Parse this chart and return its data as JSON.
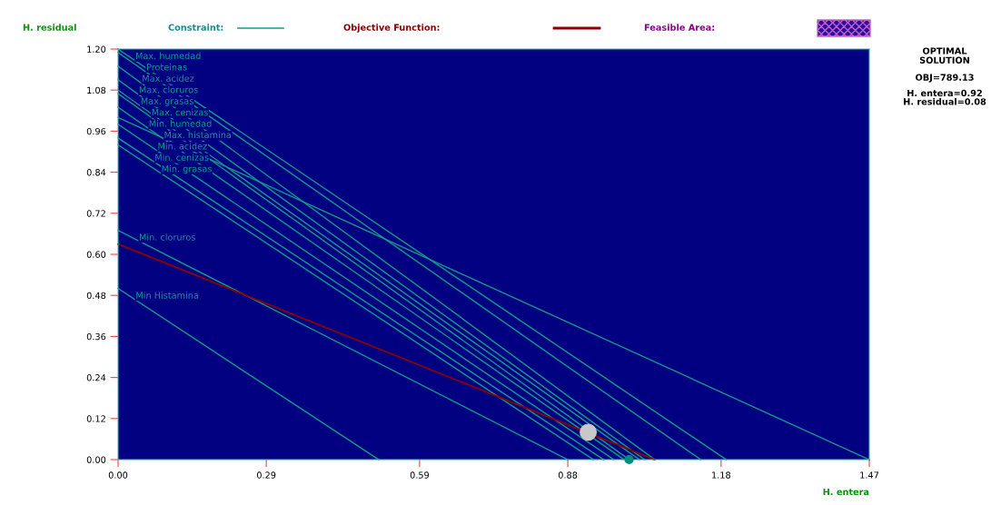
{
  "chart_data": {
    "type": "line",
    "xlabel": "H. entera",
    "ylabel": "H. residual",
    "xlim": [
      0,
      1.47
    ],
    "ylim": [
      0,
      1.2
    ],
    "xticks": [
      {
        "value": 0,
        "label": "0.00"
      },
      {
        "value": 0.29,
        "label": "0.29"
      },
      {
        "value": 0.59,
        "label": "0.59"
      },
      {
        "value": 0.88,
        "label": "0.88"
      },
      {
        "value": 1.18,
        "label": "1.18"
      },
      {
        "value": 1.47,
        "label": "1.47"
      }
    ],
    "yticks": [
      {
        "value": 0,
        "label": "0.00"
      },
      {
        "value": 0.12,
        "label": "0.12"
      },
      {
        "value": 0.24,
        "label": "0.24"
      },
      {
        "value": 0.36,
        "label": "0.36"
      },
      {
        "value": 0.48,
        "label": "0.48"
      },
      {
        "value": 0.6,
        "label": "0.60"
      },
      {
        "value": 0.72,
        "label": "0.72"
      },
      {
        "value": 0.84,
        "label": "0.84"
      },
      {
        "value": 0.96,
        "label": "0.96"
      },
      {
        "value": 1.08,
        "label": "1.08"
      },
      {
        "value": 1.2,
        "label": "1.20"
      }
    ],
    "legend": "top",
    "grid": false,
    "series": [
      {
        "name": "Max. humedad",
        "color": "#12998c",
        "x": [
          0,
          1.19
        ],
        "values": [
          1.2,
          0
        ]
      },
      {
        "name": "Proteinas",
        "color": "#12998c",
        "x": [
          0,
          1.14
        ],
        "values": [
          1.19,
          0
        ]
      },
      {
        "name": "Max. acidez",
        "color": "#12998c",
        "x": [
          0,
          1.05
        ],
        "values": [
          1.15,
          0
        ]
      },
      {
        "name": "Max. cloruros",
        "color": "#12998c",
        "x": [
          0,
          1.03
        ],
        "values": [
          1.11,
          0
        ]
      },
      {
        "name": "Max. grasas",
        "color": "#12998c",
        "x": [
          0,
          1.02
        ],
        "values": [
          1.08,
          0
        ]
      },
      {
        "name": "Max. cenizas",
        "color": "#12998c",
        "x": [
          0,
          1.0
        ],
        "values": [
          1.07,
          0
        ]
      },
      {
        "name": "Min. humedad",
        "color": "#12998c",
        "x": [
          0,
          0.99
        ],
        "values": [
          1.03,
          0
        ]
      },
      {
        "name": "Max. histamina",
        "color": "#12998c",
        "x": [
          0,
          1.47
        ],
        "values": [
          1.0,
          0
        ]
      },
      {
        "name": "Min. acidez",
        "color": "#12998c",
        "x": [
          0,
          0.97
        ],
        "values": [
          0.98,
          0
        ]
      },
      {
        "name": "Min. cenizas",
        "color": "#12998c",
        "x": [
          0,
          0.95
        ],
        "values": [
          0.94,
          0
        ]
      },
      {
        "name": "Min. grasas",
        "color": "#12998c",
        "x": [
          0,
          0.93
        ],
        "values": [
          0.92,
          0
        ]
      },
      {
        "name": "Min. cloruros",
        "color": "#12998c",
        "x": [
          0,
          0.88
        ],
        "values": [
          0.67,
          0
        ]
      },
      {
        "name": "Min Histamina",
        "color": "#12998c",
        "x": [
          0,
          0.51
        ],
        "values": [
          0.5,
          0
        ]
      },
      {
        "name": "Objective Function:",
        "color": "#8b0000",
        "x": [
          0,
          1.05
        ],
        "values": [
          0.63,
          0
        ]
      },
      {
        "type": "scatter",
        "color": "#c8c8c8",
        "x": [
          0.92
        ],
        "values": [
          0.08
        ]
      },
      {
        "type": "scatter",
        "color": "#008c80",
        "x": [
          1.0
        ],
        "values": [
          0
        ]
      }
    ],
    "annotations": [
      "Constraint:",
      "Feasible Area:",
      "OPTIMAL\nSOLUTION",
      "OBJ=789.13",
      "H. entera=0.92\nH. residual=0.08"
    ]
  }
}
